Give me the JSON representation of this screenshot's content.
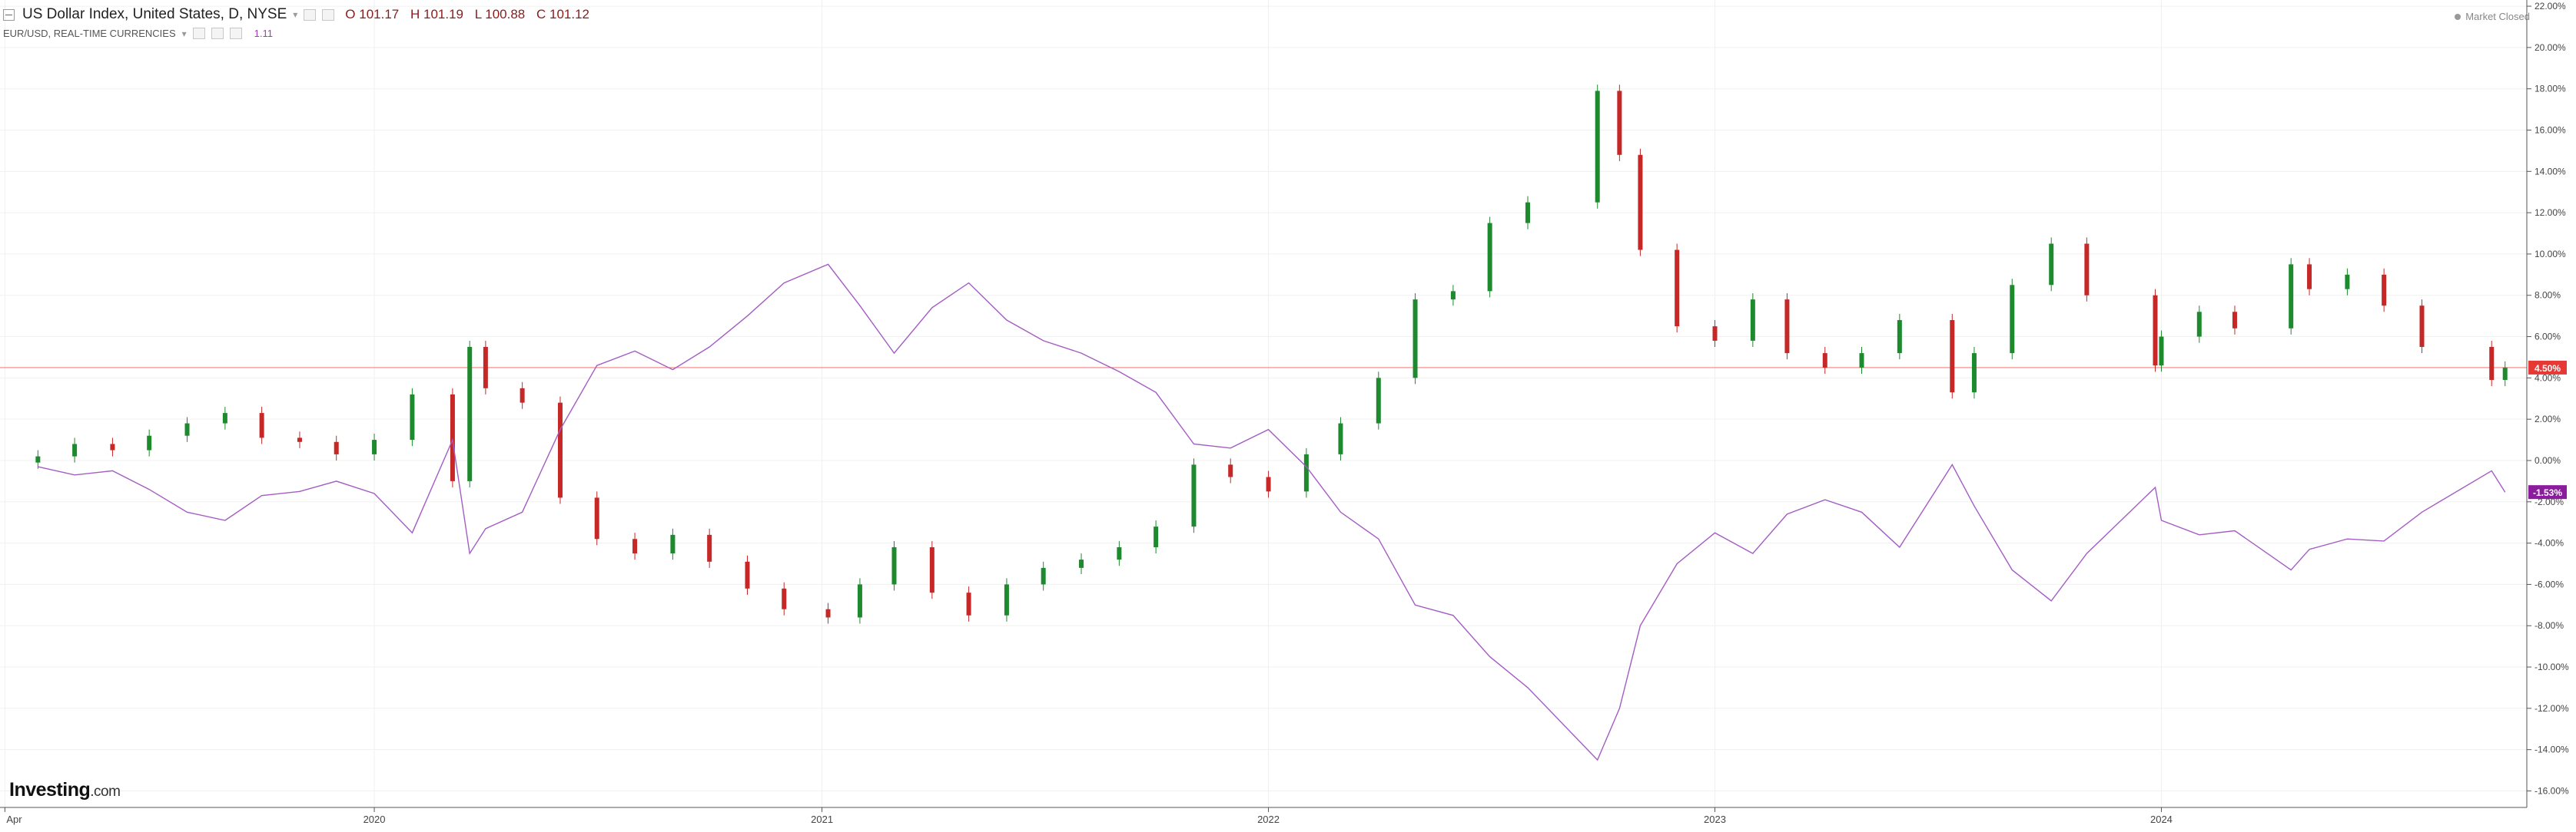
{
  "header": {
    "title": "US Dollar Index, United States, D, NYSE",
    "ohlc": {
      "open": "O 101.17",
      "high": "H 101.19",
      "low": "L 100.88",
      "close": "C 101.12"
    },
    "secondary_title": "EUR/USD, REAL-TIME CURRENCIES",
    "secondary_value": "1.11",
    "market_status": "Market Closed",
    "brand": "Investing",
    "brand_suffix": ".com"
  },
  "colors": {
    "candle_up": "#1e8a2e",
    "candle_down": "#c62828",
    "eurusd_line": "#a35cc4",
    "last_price_line": "#f08080",
    "dxy_tag": "#e53935",
    "eur_tag": "#8b1c9e",
    "grid": "#f0f0f0"
  },
  "chart_data": {
    "type": "line",
    "comparison_mode": "percent change",
    "x_tick_labels": [
      "Apr",
      "2020",
      "2021",
      "2022",
      "2023",
      "2024"
    ],
    "y_tick_labels": [
      "22.00%",
      "20.00%",
      "18.00%",
      "16.00%",
      "14.00%",
      "12.00%",
      "10.00%",
      "8.00%",
      "6.00%",
      "4.00%",
      "2.00%",
      "0.00%",
      "-2.00%",
      "-4.00%",
      "-6.00%",
      "-8.00%",
      "-10.00%",
      "-12.00%",
      "-14.00%",
      "-16.00%"
    ],
    "ylim": [
      -16.8,
      22.3
    ],
    "last_value_tags": [
      {
        "label": "4.50%",
        "value": 4.5
      },
      {
        "label": "-1.53%",
        "value": -1.53
      }
    ],
    "series": [
      {
        "style": "candlestick",
        "symbol": "US Dollar Index",
        "x": [
          "2019-04-01",
          "2019-05-01",
          "2019-06-01",
          "2019-07-01",
          "2019-08-01",
          "2019-09-01",
          "2019-10-01",
          "2019-11-01",
          "2019-12-01",
          "2020-01-01",
          "2020-02-01",
          "2020-03-05",
          "2020-03-19",
          "2020-04-01",
          "2020-05-01",
          "2020-06-01",
          "2020-07-01",
          "2020-08-01",
          "2020-09-01",
          "2020-10-01",
          "2020-11-01",
          "2020-12-01",
          "2021-01-06",
          "2021-02-01",
          "2021-03-01",
          "2021-04-01",
          "2021-05-01",
          "2021-06-01",
          "2021-07-01",
          "2021-08-01",
          "2021-09-01",
          "2021-10-01",
          "2021-11-01",
          "2021-12-01",
          "2022-01-01",
          "2022-02-01",
          "2022-03-01",
          "2022-04-01",
          "2022-05-01",
          "2022-06-01",
          "2022-07-01",
          "2022-08-01",
          "2022-09-27",
          "2022-10-15",
          "2022-11-01",
          "2022-12-01",
          "2023-01-01",
          "2023-02-01",
          "2023-03-01",
          "2023-04-01",
          "2023-05-01",
          "2023-06-01",
          "2023-07-14",
          "2023-08-01",
          "2023-09-01",
          "2023-10-03",
          "2023-11-01",
          "2023-12-27",
          "2024-01-01",
          "2024-02-01",
          "2024-03-01",
          "2024-04-16",
          "2024-05-01",
          "2024-06-01",
          "2024-07-01",
          "2024-08-01",
          "2024-09-27",
          "2024-10-08"
        ],
        "values": [
          0.2,
          0.8,
          0.5,
          1.2,
          1.8,
          2.3,
          1.1,
          0.9,
          0.3,
          1.0,
          3.2,
          -1.0,
          5.5,
          3.5,
          2.8,
          -1.8,
          -3.8,
          -4.5,
          -3.6,
          -4.9,
          -6.2,
          -7.2,
          -7.6,
          -6.0,
          -4.2,
          -6.4,
          -7.5,
          -6.0,
          -5.2,
          -4.8,
          -4.2,
          -3.2,
          -0.2,
          -0.8,
          -1.5,
          0.3,
          1.8,
          4.0,
          7.8,
          8.2,
          11.5,
          12.5,
          17.9,
          14.8,
          10.2,
          6.5,
          5.8,
          7.8,
          5.2,
          4.5,
          5.2,
          6.8,
          3.3,
          5.2,
          8.5,
          10.5,
          8.0,
          4.6,
          6.0,
          7.2,
          6.4,
          9.5,
          8.3,
          9.0,
          7.5,
          5.5,
          3.9,
          4.5
        ]
      },
      {
        "style": "line",
        "symbol": "EUR/USD",
        "x": [
          "2019-04-01",
          "2019-05-01",
          "2019-06-01",
          "2019-07-01",
          "2019-08-01",
          "2019-09-01",
          "2019-10-01",
          "2019-11-01",
          "2019-12-01",
          "2020-01-01",
          "2020-02-01",
          "2020-03-05",
          "2020-03-19",
          "2020-04-01",
          "2020-05-01",
          "2020-06-01",
          "2020-07-01",
          "2020-08-01",
          "2020-09-01",
          "2020-10-01",
          "2020-11-01",
          "2020-12-01",
          "2021-01-06",
          "2021-02-01",
          "2021-03-01",
          "2021-04-01",
          "2021-05-01",
          "2021-06-01",
          "2021-07-01",
          "2021-08-01",
          "2021-09-01",
          "2021-10-01",
          "2021-11-01",
          "2021-12-01",
          "2022-01-01",
          "2022-02-01",
          "2022-03-01",
          "2022-04-01",
          "2022-05-01",
          "2022-06-01",
          "2022-07-01",
          "2022-08-01",
          "2022-09-27",
          "2022-10-15",
          "2022-11-01",
          "2022-12-01",
          "2023-01-01",
          "2023-02-01",
          "2023-03-01",
          "2023-04-01",
          "2023-05-01",
          "2023-06-01",
          "2023-07-14",
          "2023-08-01",
          "2023-09-01",
          "2023-10-03",
          "2023-11-01",
          "2023-12-27",
          "2024-01-01",
          "2024-02-01",
          "2024-03-01",
          "2024-04-16",
          "2024-05-01",
          "2024-06-01",
          "2024-07-01",
          "2024-08-01",
          "2024-09-27",
          "2024-10-08"
        ],
        "values": [
          -0.3,
          -0.7,
          -0.5,
          -1.4,
          -2.5,
          -2.9,
          -1.7,
          -1.5,
          -1.0,
          -1.6,
          -3.5,
          1.0,
          -4.5,
          -3.3,
          -2.5,
          1.5,
          4.6,
          5.3,
          4.4,
          5.5,
          7.0,
          8.6,
          9.5,
          7.5,
          5.2,
          7.4,
          8.6,
          6.8,
          5.8,
          5.2,
          4.3,
          3.3,
          0.8,
          0.6,
          1.5,
          -0.3,
          -2.5,
          -3.8,
          -7.0,
          -7.5,
          -9.5,
          -11.0,
          -14.5,
          -12.0,
          -8.0,
          -5.0,
          -3.5,
          -4.5,
          -2.6,
          -1.9,
          -2.5,
          -4.2,
          -0.2,
          -2.2,
          -5.3,
          -6.8,
          -4.5,
          -1.3,
          -2.9,
          -3.6,
          -3.4,
          -5.3,
          -4.3,
          -3.8,
          -3.9,
          -2.5,
          -0.5,
          -1.53
        ]
      }
    ]
  }
}
